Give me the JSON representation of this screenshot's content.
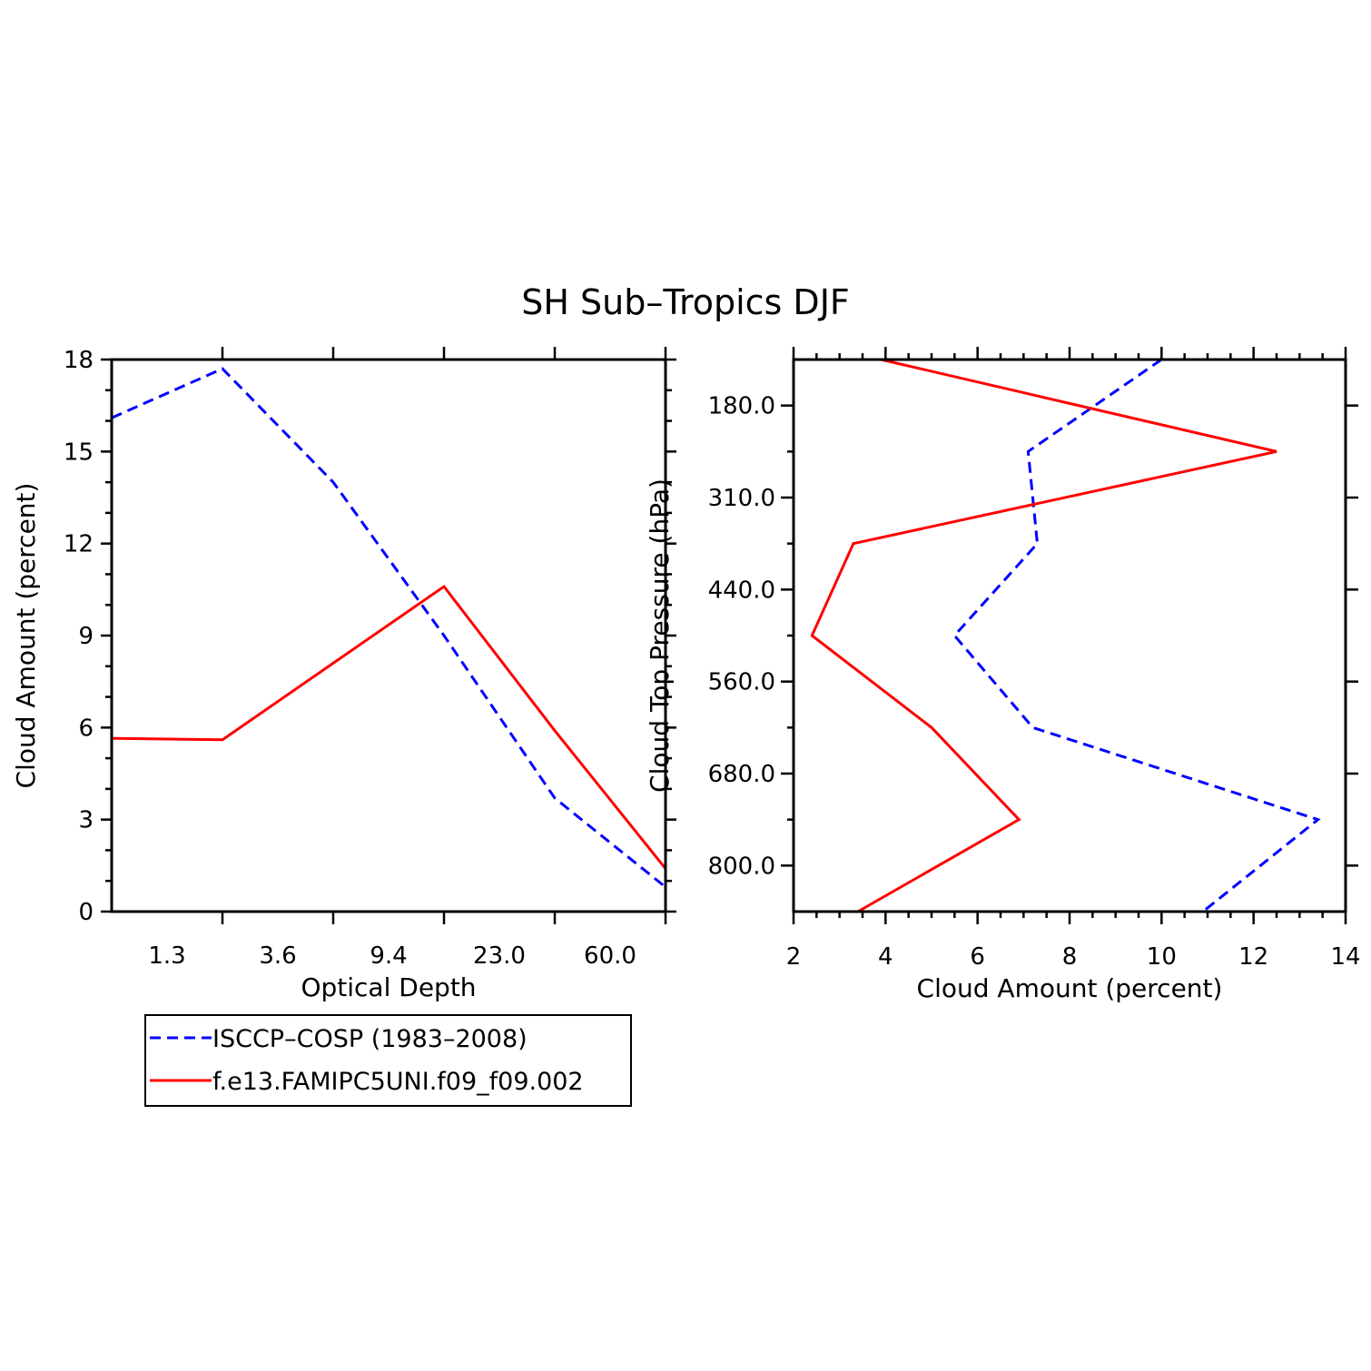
{
  "title": "SH Sub–Tropics DJF",
  "colors": {
    "isccp": "#0000ff",
    "model": "#ff0000",
    "axis": "#000000"
  },
  "legend": {
    "entries": [
      {
        "label": "ISCCP–COSP (1983–2008)",
        "color": "#0000ff",
        "dash": true
      },
      {
        "label": "f.e13.FAMIPC5UNI.f09_f09.002",
        "color": "#ff0000",
        "dash": false
      }
    ]
  },
  "chart_data": [
    {
      "type": "line",
      "xlabel": "Optical Depth",
      "ylabel": "Cloud Amount (percent)",
      "x_tick_labels": [
        "1.3",
        "3.6",
        "9.4",
        "23.0",
        "60.0"
      ],
      "y_ticks": [
        0,
        3,
        6,
        9,
        12,
        15,
        18
      ],
      "ylim": [
        0,
        18
      ],
      "x_bin_index": [
        0,
        1,
        2,
        3,
        4,
        5
      ],
      "series": [
        {
          "name": "ISCCP–COSP (1983–2008)",
          "values": [
            16.1,
            17.7,
            14.0,
            9.0,
            3.7,
            0.8
          ]
        },
        {
          "name": "f.e13.FAMIPC5UNI.f09_f09.002",
          "values": [
            5.65,
            5.6,
            8.1,
            10.6,
            5.9,
            1.4
          ]
        }
      ]
    },
    {
      "type": "line",
      "xlabel": "Cloud Amount (percent)",
      "ylabel": "Cloud Top Pressure (hPa)",
      "y_tick_labels": [
        "180.0",
        "310.0",
        "440.0",
        "560.0",
        "680.0",
        "800.0"
      ],
      "x_ticks": [
        2,
        4,
        6,
        8,
        10,
        12,
        14
      ],
      "xlim": [
        2,
        14
      ],
      "y_bin_index": [
        0,
        1,
        2,
        3,
        4,
        5,
        6
      ],
      "series": [
        {
          "name": "ISCCP–COSP (1983–2008)",
          "values": [
            10.0,
            7.1,
            7.3,
            5.5,
            7.2,
            13.4,
            10.9
          ]
        },
        {
          "name": "f.e13.FAMIPC5UNI.f09_f09.002",
          "values": [
            3.9,
            12.5,
            3.3,
            2.4,
            5.0,
            6.9,
            3.4
          ]
        }
      ]
    }
  ]
}
